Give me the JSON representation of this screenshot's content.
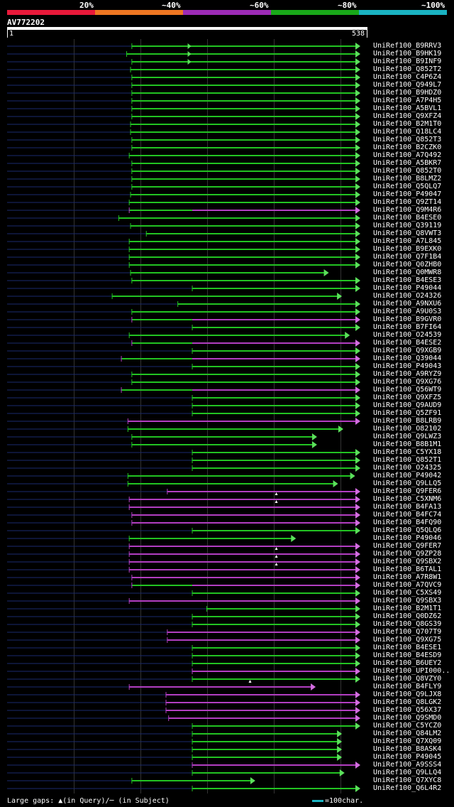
{
  "legend": {
    "labels": [
      "20%",
      "~40%",
      "~60%",
      "~80%",
      "~100%"
    ],
    "colors": [
      "#e8193a",
      "#ee7722",
      "#9c2bb5",
      "#19a819",
      "#1ab3c2"
    ]
  },
  "query": {
    "name": "AV772202",
    "start_label": "1",
    "end_label": "538"
  },
  "footer": {
    "text": "Large gaps: ▲(in Query)/─ (in Subject)"
  },
  "scale_key": {
    "text": "=100char."
  },
  "hits": [
    {
      "name": "UniRef100_B9RRV3",
      "color": "green",
      "start": 190,
      "end": 538,
      "gap": [
        275,
        285
      ],
      "q_start": 0
    },
    {
      "name": "UniRef100_B9HK19",
      "color": "green",
      "start": 182,
      "end": 538,
      "gap": [
        275,
        285
      ],
      "q_start": 0
    },
    {
      "name": "UniRef100_B9INF9",
      "color": "green",
      "start": 190,
      "end": 538,
      "gap": [
        275,
        292
      ],
      "q_start": 0
    },
    {
      "name": "UniRef100_Q852T2",
      "color": "green",
      "start": 188,
      "end": 538,
      "q_start": 0
    },
    {
      "name": "UniRef100_C4P6Z4",
      "color": "green",
      "start": 190,
      "end": 538,
      "q_start": 0
    },
    {
      "name": "UniRef100_Q949L7",
      "color": "green",
      "start": 190,
      "end": 538,
      "q_start": 0
    },
    {
      "name": "UniRef100_B9HDZ0",
      "color": "green",
      "start": 190,
      "end": 538,
      "q_start": 0
    },
    {
      "name": "UniRef100_A7P4H5",
      "color": "green",
      "start": 190,
      "end": 538,
      "q_start": 0
    },
    {
      "name": "UniRef100_A5BVL1",
      "color": "green",
      "start": 190,
      "end": 538,
      "q_start": 0
    },
    {
      "name": "UniRef100_Q9XFZ4",
      "color": "green",
      "start": 190,
      "end": 538,
      "q_start": 0
    },
    {
      "name": "UniRef100_B2M1T0",
      "color": "green",
      "start": 188,
      "end": 538,
      "q_start": 0
    },
    {
      "name": "UniRef100_Q18LC4",
      "color": "green",
      "start": 188,
      "end": 538,
      "q_start": 0
    },
    {
      "name": "UniRef100_Q852T3",
      "color": "green",
      "start": 190,
      "end": 538,
      "q_start": 0
    },
    {
      "name": "UniRef100_B2CZK0",
      "color": "green",
      "start": 190,
      "end": 538,
      "q_start": 0
    },
    {
      "name": "UniRef100_A7Q492",
      "color": "green",
      "start": 186,
      "end": 538,
      "q_start": 0
    },
    {
      "name": "UniRef100_A5BKR7",
      "color": "green",
      "start": 190,
      "end": 538,
      "q_start": 0
    },
    {
      "name": "UniRef100_Q852T0",
      "color": "green",
      "start": 190,
      "end": 538,
      "q_start": 0
    },
    {
      "name": "UniRef100_B8LMZ2",
      "color": "green",
      "start": 190,
      "end": 538,
      "q_start": 0
    },
    {
      "name": "UniRef100_Q5QLQ7",
      "color": "green",
      "start": 190,
      "end": 538,
      "q_start": 0
    },
    {
      "name": "UniRef100_P49047",
      "color": "green",
      "start": 188,
      "end": 538,
      "q_start": 0
    },
    {
      "name": "UniRef100_Q9ZT14",
      "color": "green",
      "start": 186,
      "end": 538,
      "q_start": 0
    },
    {
      "name": "UniRef100_Q9M4R6",
      "color": "purple",
      "start": 186,
      "end": 538,
      "mixed": [
        [
          186,
          282,
          "green"
        ]
      ],
      "q_start": 0
    },
    {
      "name": "UniRef100_B4ESE0",
      "color": "green",
      "start": 170,
      "end": 538,
      "q_start": 0
    },
    {
      "name": "UniRef100_Q39119",
      "color": "green",
      "start": 188,
      "end": 538,
      "q_start": 0
    },
    {
      "name": "UniRef100_Q8VWT3",
      "color": "green",
      "start": 212,
      "end": 538,
      "q_start": 0
    },
    {
      "name": "UniRef100_A7L845",
      "color": "green",
      "start": 186,
      "end": 538,
      "q_start": 0
    },
    {
      "name": "UniRef100_B9EXK0",
      "color": "green",
      "start": 186,
      "end": 538,
      "q_start": 0
    },
    {
      "name": "UniRef100_Q7F1B4",
      "color": "green",
      "start": 186,
      "end": 538,
      "q_start": 0
    },
    {
      "name": "UniRef100_Q0ZHB0",
      "color": "green",
      "start": 186,
      "end": 538,
      "q_start": 0
    },
    {
      "name": "UniRef100_Q0MWR8",
      "color": "green",
      "start": 188,
      "end": 490,
      "q_start": 0
    },
    {
      "name": "UniRef100_B4ESE3",
      "color": "green",
      "start": 190,
      "end": 538,
      "q_start": 0
    },
    {
      "name": "UniRef100_P49044",
      "color": "green",
      "start": 282,
      "end": 538,
      "q_start": 0
    },
    {
      "name": "UniRef100_O24326",
      "color": "green",
      "start": 160,
      "end": 510,
      "q_start": 0
    },
    {
      "name": "UniRef100_A9NXU6",
      "color": "green",
      "start": 260,
      "end": 538,
      "q_start": 0
    },
    {
      "name": "UniRef100_A9U0S3",
      "color": "green",
      "start": 190,
      "end": 538,
      "q_start": 0
    },
    {
      "name": "UniRef100_B9GVR0",
      "color": "purple",
      "start": 190,
      "end": 538,
      "mixed": [
        [
          190,
          282,
          "green"
        ]
      ],
      "q_start": 0
    },
    {
      "name": "UniRef100_B7FI64",
      "color": "green",
      "start": 282,
      "end": 538,
      "q_start": 0
    },
    {
      "name": "UniRef100_O24539",
      "color": "green",
      "start": 186,
      "end": 522,
      "q_start": 0
    },
    {
      "name": "UniRef100_B4ESE2",
      "color": "purple",
      "start": 190,
      "end": 538,
      "mixed": [
        [
          190,
          282,
          "green"
        ]
      ],
      "q_start": 0
    },
    {
      "name": "UniRef100_Q9XGB9",
      "color": "green",
      "start": 282,
      "end": 538,
      "q_start": 0
    },
    {
      "name": "UniRef100_Q39044",
      "color": "purple",
      "start": 174,
      "end": 538,
      "mixed": [
        [
          174,
          282,
          "green"
        ]
      ],
      "q_start": 0
    },
    {
      "name": "UniRef100_P49043",
      "color": "green",
      "start": 282,
      "end": 538,
      "q_start": 0
    },
    {
      "name": "UniRef100_A9RYZ9",
      "color": "green",
      "start": 190,
      "end": 538,
      "q_start": 0
    },
    {
      "name": "UniRef100_Q9XG76",
      "color": "green",
      "start": 190,
      "end": 538,
      "q_start": 0
    },
    {
      "name": "UniRef100_Q56WT9",
      "color": "purple",
      "start": 174,
      "end": 538,
      "mixed": [
        [
          174,
          282,
          "green"
        ]
      ],
      "q_start": 0
    },
    {
      "name": "UniRef100_Q9XFZ5",
      "color": "green",
      "start": 282,
      "end": 538,
      "q_start": 0
    },
    {
      "name": "UniRef100_Q9AUD9",
      "color": "green",
      "start": 282,
      "end": 538,
      "q_start": 0
    },
    {
      "name": "UniRef100_Q5ZF91",
      "color": "green",
      "start": 282,
      "end": 538,
      "q_start": 0
    },
    {
      "name": "UniRef100_B8LRB9",
      "color": "purple",
      "start": 184,
      "end": 538,
      "q_start": 0
    },
    {
      "name": "UniRef100_O82102",
      "color": "green",
      "start": 184,
      "end": 512,
      "q_start": 0
    },
    {
      "name": "UniRef100_Q9LWZ3",
      "color": "green",
      "start": 190,
      "end": 472,
      "q_start": 0
    },
    {
      "name": "UniRef100_B8B1M1",
      "color": "green",
      "start": 190,
      "end": 472,
      "q_start": 0
    },
    {
      "name": "UniRef100_C5YX18",
      "color": "green",
      "start": 282,
      "end": 538,
      "q_start": 0
    },
    {
      "name": "UniRef100_Q852T1",
      "color": "green",
      "start": 282,
      "end": 538,
      "q_start": 0
    },
    {
      "name": "UniRef100_O24325",
      "color": "green",
      "start": 282,
      "end": 538,
      "q_start": 0
    },
    {
      "name": "UniRef100_P49042",
      "color": "green",
      "start": 184,
      "end": 530,
      "q_start": 0
    },
    {
      "name": "UniRef100_Q9LLQ5",
      "color": "green",
      "start": 184,
      "end": 504,
      "q_start": 0
    },
    {
      "name": "UniRef100_Q9FER6",
      "color": "purple",
      "start": 244,
      "end": 538,
      "q_start": 0
    },
    {
      "name": "UniRef100_C5XNM6",
      "color": "purple",
      "start": 186,
      "end": 538,
      "tri": 410,
      "q_start": 0
    },
    {
      "name": "UniRef100_B4FA13",
      "color": "purple",
      "start": 186,
      "end": 538,
      "tri": 410,
      "q_start": 0
    },
    {
      "name": "UniRef100_B4FC74",
      "color": "purple",
      "start": 190,
      "end": 538,
      "q_start": 0
    },
    {
      "name": "UniRef100_B4FQ90",
      "color": "purple",
      "start": 190,
      "end": 538,
      "q_start": 0
    },
    {
      "name": "UniRef100_Q5QLQ6",
      "color": "green",
      "start": 282,
      "end": 538,
      "q_start": 0
    },
    {
      "name": "UniRef100_P49046",
      "color": "green",
      "start": 186,
      "end": 440,
      "q_start": 0
    },
    {
      "name": "UniRef100_Q9FER7",
      "color": "purple",
      "start": 186,
      "end": 538,
      "q_start": 0
    },
    {
      "name": "UniRef100_Q9ZP28",
      "color": "purple",
      "start": 186,
      "end": 538,
      "tri": 410,
      "q_start": 0
    },
    {
      "name": "UniRef100_Q9SBX2",
      "color": "purple",
      "start": 186,
      "end": 538,
      "tri": 410,
      "q_start": 0
    },
    {
      "name": "UniRef100_B6TAL1",
      "color": "purple",
      "start": 186,
      "end": 538,
      "tri": 410,
      "q_start": 0
    },
    {
      "name": "UniRef100_A7R8W1",
      "color": "purple",
      "start": 190,
      "end": 538,
      "q_start": 0
    },
    {
      "name": "UniRef100_A7QVC9",
      "color": "purple",
      "start": 190,
      "end": 538,
      "mixed": [
        [
          190,
          282,
          "green"
        ]
      ],
      "q_start": 0
    },
    {
      "name": "UniRef100_C5XS49",
      "color": "green",
      "start": 282,
      "end": 538,
      "q_start": 0
    },
    {
      "name": "UniRef100_Q9SBX3",
      "color": "purple",
      "start": 186,
      "end": 538,
      "q_start": 0
    },
    {
      "name": "UniRef100_B2M1T1",
      "color": "green",
      "start": 304,
      "end": 538,
      "q_start": 0
    },
    {
      "name": "UniRef100_Q0DZ62",
      "color": "green",
      "start": 282,
      "end": 538,
      "q_start": 0
    },
    {
      "name": "UniRef100_Q8GS39",
      "color": "green",
      "start": 282,
      "end": 538,
      "q_start": 0
    },
    {
      "name": "UniRef100_Q707T9",
      "color": "purple",
      "start": 244,
      "end": 538,
      "q_start": 0
    },
    {
      "name": "UniRef100_Q9XG75",
      "color": "purple",
      "start": 244,
      "end": 538,
      "q_start": 0
    },
    {
      "name": "UniRef100_B4ESE1",
      "color": "green",
      "start": 282,
      "end": 538,
      "q_start": 0
    },
    {
      "name": "UniRef100_B4ESD9",
      "color": "green",
      "start": 282,
      "end": 538,
      "q_start": 0
    },
    {
      "name": "UniRef100_B6UEY2",
      "color": "green",
      "start": 282,
      "end": 538,
      "q_start": 0
    },
    {
      "name": "UniRef100_UPI000..",
      "color": "purple",
      "start": 282,
      "end": 538,
      "q_start": 0
    },
    {
      "name": "UniRef100_Q8VZY0",
      "color": "green",
      "start": 282,
      "end": 538,
      "q_start": 0
    },
    {
      "name": "UniRef100_B4FLY9",
      "color": "purple",
      "start": 186,
      "end": 470,
      "tri": 370,
      "q_start": 0
    },
    {
      "name": "UniRef100_Q9LJX8",
      "color": "purple",
      "start": 242,
      "end": 538,
      "q_start": 0
    },
    {
      "name": "UniRef100_Q8LGK2",
      "color": "purple",
      "start": 242,
      "end": 538,
      "q_start": 0
    },
    {
      "name": "UniRef100_Q56X37",
      "color": "purple",
      "start": 242,
      "end": 538,
      "q_start": 0
    },
    {
      "name": "UniRef100_Q9SMD0",
      "color": "purple",
      "start": 246,
      "end": 538,
      "q_start": 0
    },
    {
      "name": "UniRef100_C5YCZ0",
      "color": "green",
      "start": 282,
      "end": 538,
      "q_start": 0
    },
    {
      "name": "UniRef100_Q84LM2",
      "color": "green",
      "start": 282,
      "end": 510,
      "q_start": 0
    },
    {
      "name": "UniRef100_Q7XQ09",
      "color": "green",
      "start": 282,
      "end": 510,
      "q_start": 0
    },
    {
      "name": "UniRef100_B8ASK4",
      "color": "green",
      "start": 282,
      "end": 510,
      "q_start": 0
    },
    {
      "name": "UniRef100_P49045",
      "color": "green",
      "start": 282,
      "end": 510,
      "q_start": 0
    },
    {
      "name": "UniRef100_A9SSS4",
      "color": "purple",
      "start": 282,
      "end": 538,
      "q_start": 0
    },
    {
      "name": "UniRef100_Q9LLQ4",
      "color": "green",
      "start": 282,
      "end": 514,
      "q_start": 0
    },
    {
      "name": "UniRef100_Q7XYC8",
      "color": "green",
      "start": 190,
      "end": 378,
      "q_start": 0
    },
    {
      "name": "UniRef100_Q6L4R2",
      "color": "green",
      "start": 282,
      "end": 538,
      "q_start": 0
    }
  ]
}
